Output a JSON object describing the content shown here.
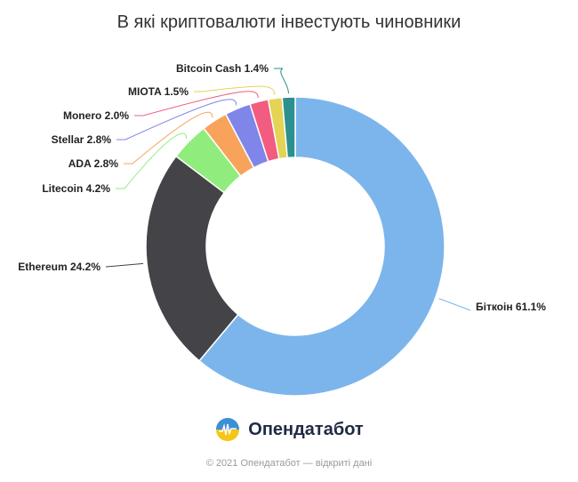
{
  "chart_data": {
    "type": "pie",
    "title": "В які криптовалюти інвестують чиновники",
    "donut": true,
    "categories": [
      "Біткоін",
      "Ethereum",
      "Litecoin",
      "ADA",
      "Stellar",
      "Monero",
      "MIOTA",
      "Bitcoin Cash"
    ],
    "values": [
      61.1,
      24.2,
      4.2,
      2.8,
      2.8,
      2.0,
      1.5,
      1.4
    ],
    "labels": [
      "Біткоін 61.1%",
      "Ethereum 24.2%",
      "Litecoin 4.2%",
      "ADA 2.8%",
      "Stellar 2.8%",
      "Monero 2.0%",
      "MIOTA 1.5%",
      "Bitcoin Cash 1.4%"
    ],
    "colors": [
      "#7cb5ec",
      "#434348",
      "#90ed7d",
      "#f7a35c",
      "#8085e9",
      "#f15c80",
      "#e4d354",
      "#2b908f"
    ]
  },
  "brand": {
    "name": "Опендатабот"
  },
  "footer": {
    "text": "© 2021 Опендатабот — відкриті дані"
  }
}
